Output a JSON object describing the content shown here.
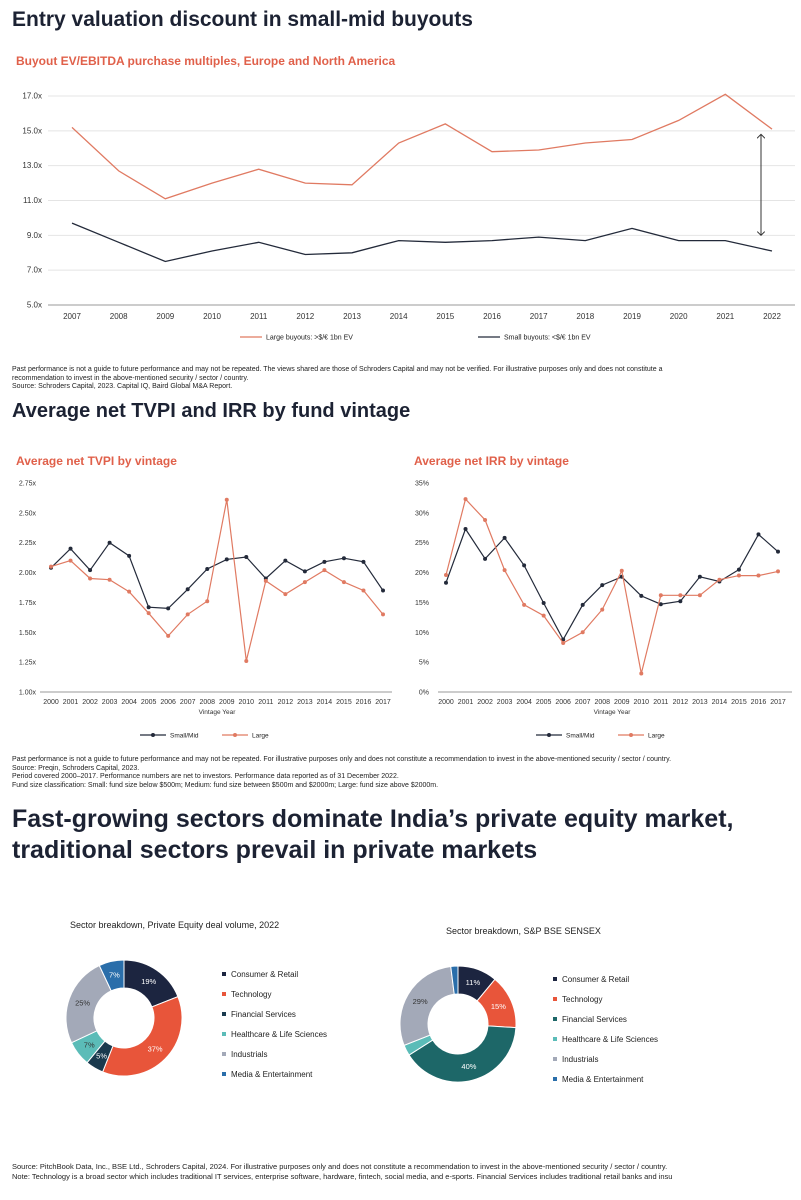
{
  "panel1": {
    "title": "Entry valuation discount in small-mid buyouts",
    "notes": [
      "Past performance is not a guide to future performance and may not be repeated. The views shared are those of Schroders Capital and may not be verified. For illustrative purposes only and does not constitute a",
      "recommendation to invest in the above-mentioned security / sector / country.",
      "Source: Schroders Capital, 2023. Capital IQ, Baird Global M&A Report."
    ]
  },
  "panel2": {
    "title": "Average net TVPI and IRR by fund vintage",
    "notes": [
      "Past performance is not a guide to future performance and may not be repeated. For illustrative purposes only and does not constitute a recommendation to invest in the above-mentioned security / sector / country.",
      "Source: Preqin, Schroders Capital, 2023.",
      "Period covered 2000–2017. Performance numbers are net to investors. Performance data reported as of 31 December 2022.",
      "Fund size classification: Small: fund size below $500m; Medium: fund size between $500m and $2000m; Large: fund size above $2000m."
    ]
  },
  "panel3": {
    "title_line1": "Fast-growing sectors dominate India’s private equity market,",
    "title_line2": "traditional sectors prevail in private markets",
    "notes": [
      "Source: PitchBook Data, Inc., BSE Ltd., Schroders Capital, 2024. For illustrative purposes only and does not constitute a recommendation to invest in the above-mentioned security / sector / country.",
      "Note: Technology is a broad sector which includes traditional IT services, enterprise software, hardware, fintech, social media, and e-sports. Financial Services includes traditional retail banks and insu"
    ]
  },
  "colors": {
    "large": "#e07a62",
    "small": "#232a3a"
  },
  "chart_data": [
    {
      "type": "line",
      "title": "Buyout EV/EBITDA purchase multiples, Europe and North America",
      "x": [
        "2007",
        "2008",
        "2009",
        "2010",
        "2011",
        "2012",
        "2013",
        "2014",
        "2015",
        "2016",
        "2017",
        "2018",
        "2019",
        "2020",
        "2021",
        "2022"
      ],
      "ylim": [
        5,
        17
      ],
      "yticks": [
        "5.0x",
        "7.0x",
        "9.0x",
        "11.0x",
        "13.0x",
        "15.0x",
        "17.0x"
      ],
      "ytick_values": [
        5,
        7,
        9,
        11,
        13,
        15,
        17
      ],
      "grid": true,
      "legend": "bottom",
      "series": [
        {
          "name": "Large buyouts: >$/€ 1bn EV",
          "color": "#e07a62",
          "values": [
            15.2,
            12.7,
            11.1,
            12.0,
            12.8,
            12.0,
            11.9,
            14.3,
            15.4,
            13.8,
            13.9,
            14.3,
            14.5,
            15.6,
            17.1,
            15.1
          ]
        },
        {
          "name": "Small buyouts: <$/€ 1bn EV",
          "color": "#232a3a",
          "values": [
            9.7,
            8.6,
            7.5,
            8.1,
            8.6,
            7.9,
            8.0,
            8.7,
            8.6,
            8.7,
            8.9,
            8.7,
            9.4,
            8.7,
            8.7,
            8.1
          ]
        }
      ]
    },
    {
      "type": "line",
      "title": "Average net TVPI by vintage",
      "xlabel": "Vintage Year",
      "x": [
        "2000",
        "2001",
        "2002",
        "2003",
        "2004",
        "2005",
        "2006",
        "2007",
        "2008",
        "2009",
        "2010",
        "2011",
        "2012",
        "2013",
        "2014",
        "2015",
        "2016",
        "2017"
      ],
      "ylim": [
        1.0,
        2.75
      ],
      "yticks": [
        "1.00x",
        "1.25x",
        "1.50x",
        "1.75x",
        "2.00x",
        "2.25x",
        "2.50x",
        "2.75x"
      ],
      "ytick_values": [
        1.0,
        1.25,
        1.5,
        1.75,
        2.0,
        2.25,
        2.5,
        2.75
      ],
      "grid": false,
      "legend": "bottom",
      "series": [
        {
          "name": "Small/Mid",
          "color": "#232a3a",
          "values": [
            2.04,
            2.2,
            2.02,
            2.25,
            2.14,
            1.71,
            1.7,
            1.86,
            2.03,
            2.11,
            2.13,
            1.95,
            2.1,
            2.01,
            2.09,
            2.12,
            2.09,
            1.85
          ]
        },
        {
          "name": "Large",
          "color": "#e07a62",
          "values": [
            2.05,
            2.1,
            1.95,
            1.94,
            1.84,
            1.66,
            1.47,
            1.65,
            1.76,
            2.61,
            1.26,
            1.93,
            1.82,
            1.92,
            2.02,
            1.92,
            1.85,
            1.65
          ]
        }
      ]
    },
    {
      "type": "line",
      "title": "Average net IRR by vintage",
      "xlabel": "Vintage Year",
      "x": [
        "2000",
        "2001",
        "2002",
        "2003",
        "2004",
        "2005",
        "2006",
        "2007",
        "2008",
        "2009",
        "2010",
        "2011",
        "2012",
        "2013",
        "2014",
        "2015",
        "2016",
        "2017"
      ],
      "ylim": [
        0,
        35
      ],
      "yticks": [
        "0%",
        "5%",
        "10%",
        "15%",
        "20%",
        "25%",
        "30%",
        "35%"
      ],
      "ytick_values": [
        0,
        5,
        10,
        15,
        20,
        25,
        30,
        35
      ],
      "grid": false,
      "legend": "bottom",
      "series": [
        {
          "name": "Small/Mid",
          "color": "#232a3a",
          "values": [
            18.3,
            27.3,
            22.3,
            25.8,
            21.2,
            14.9,
            8.8,
            14.6,
            17.9,
            19.3,
            16.1,
            14.7,
            15.2,
            19.3,
            18.5,
            20.5,
            26.4,
            23.5
          ]
        },
        {
          "name": "Large",
          "color": "#e07a62",
          "values": [
            19.6,
            32.3,
            28.8,
            20.4,
            14.6,
            12.8,
            8.2,
            10.0,
            13.8,
            20.3,
            3.1,
            16.2,
            16.2,
            16.2,
            18.8,
            19.5,
            19.5,
            20.2
          ]
        }
      ]
    },
    {
      "type": "pie",
      "title": "Sector breakdown, Private Equity deal volume, 2022",
      "legend": "right",
      "slices": [
        {
          "name": "Consumer & Retail",
          "value": 19,
          "label": "19%",
          "color": "#1c2540"
        },
        {
          "name": "Technology",
          "value": 37,
          "label": "37%",
          "color": "#e8553a"
        },
        {
          "name": "Financial Services",
          "value": 5,
          "label": "5%",
          "color": "#1a3a4e"
        },
        {
          "name": "Healthcare & Life Sciences",
          "value": 7,
          "label": "7%",
          "color": "#5bbcb8"
        },
        {
          "name": "Industrials",
          "value": 25,
          "label": "25%",
          "color": "#a3a9b8"
        },
        {
          "name": "Media & Entertainment",
          "value": 7,
          "label": "7%",
          "color": "#2a6eaa"
        }
      ]
    },
    {
      "type": "pie",
      "title": "Sector breakdown, S&P BSE SENSEX",
      "legend": "right",
      "slices": [
        {
          "name": "Consumer & Retail",
          "value": 11,
          "label": "11%",
          "color": "#1c2540"
        },
        {
          "name": "Technology",
          "value": 15,
          "label": "15%",
          "color": "#e8553a"
        },
        {
          "name": "Financial Services",
          "value": 40,
          "label": "40%",
          "color": "#1d6768"
        },
        {
          "name": "Healthcare & Life Sciences",
          "value": 3,
          "label": "",
          "color": "#5bbcb8"
        },
        {
          "name": "Industrials",
          "value": 29,
          "label": "29%",
          "color": "#a3a9b8"
        },
        {
          "name": "Media & Entertainment",
          "value": 2,
          "label": "",
          "color": "#2a6eaa"
        }
      ]
    }
  ]
}
